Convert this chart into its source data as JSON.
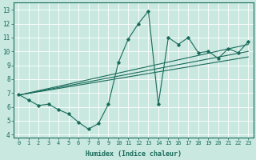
{
  "xlabel": "Humidex (Indice chaleur)",
  "xlim": [
    -0.5,
    23.5
  ],
  "ylim": [
    3.8,
    13.5
  ],
  "xticks": [
    0,
    1,
    2,
    3,
    4,
    5,
    6,
    7,
    8,
    9,
    10,
    11,
    12,
    13,
    14,
    15,
    16,
    17,
    18,
    19,
    20,
    21,
    22,
    23
  ],
  "yticks": [
    4,
    5,
    6,
    7,
    8,
    9,
    10,
    11,
    12,
    13
  ],
  "bg_color": "#c8e8e0",
  "line_color": "#1a6b5a",
  "grid_color": "#ffffff",
  "jagged_x": [
    0,
    1,
    2,
    3,
    4,
    5,
    6,
    7,
    8,
    9,
    10,
    11,
    12,
    13,
    14,
    15,
    16,
    17,
    18,
    19,
    20,
    21,
    22,
    23
  ],
  "jagged_y": [
    6.9,
    6.5,
    6.1,
    6.2,
    5.8,
    5.5,
    4.9,
    4.4,
    4.8,
    6.2,
    9.2,
    10.9,
    12.0,
    12.9,
    6.2,
    11.0,
    10.5,
    11.0,
    9.9,
    10.0,
    9.5,
    10.2,
    9.9,
    10.7
  ],
  "line1_x": [
    0,
    23
  ],
  "line1_y": [
    6.85,
    10.5
  ],
  "line2_x": [
    0,
    23
  ],
  "line2_y": [
    6.85,
    9.6
  ],
  "line3_x": [
    0,
    23
  ],
  "line3_y": [
    6.85,
    10.0
  ]
}
